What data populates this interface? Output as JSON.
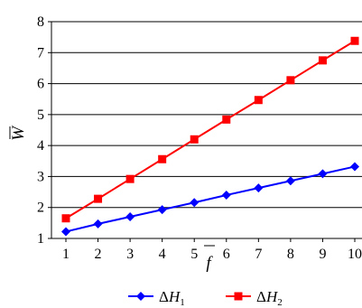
{
  "chart_data": {
    "type": "line",
    "x": [
      1,
      2,
      3,
      4,
      5,
      6,
      7,
      8,
      9,
      10
    ],
    "xlabel": "f",
    "ylabel": "W",
    "xlim": [
      1,
      10
    ],
    "ylim": [
      1,
      8
    ],
    "yticks": [
      "1",
      "2",
      "3",
      "4",
      "5",
      "6",
      "7",
      "8"
    ],
    "xticks": [
      "1",
      "2",
      "3",
      "4",
      "5",
      "6",
      "7",
      "8",
      "9",
      "10"
    ],
    "grid": "horizontal",
    "legend": "bottom",
    "series": [
      {
        "name": "ΔH₁",
        "prefix": "Δ",
        "var": "H",
        "sub": "1",
        "marker": "diamond",
        "color": "#0000ff",
        "values": [
          1.22,
          1.47,
          1.7,
          1.93,
          2.16,
          2.4,
          2.63,
          2.86,
          3.09,
          3.32
        ]
      },
      {
        "name": "ΔH₂",
        "prefix": "Δ",
        "var": "H",
        "sub": "2",
        "marker": "square",
        "color": "#ff0000",
        "values": [
          1.65,
          2.28,
          2.92,
          3.56,
          4.2,
          4.84,
          5.47,
          6.11,
          6.75,
          7.38
        ]
      }
    ]
  }
}
